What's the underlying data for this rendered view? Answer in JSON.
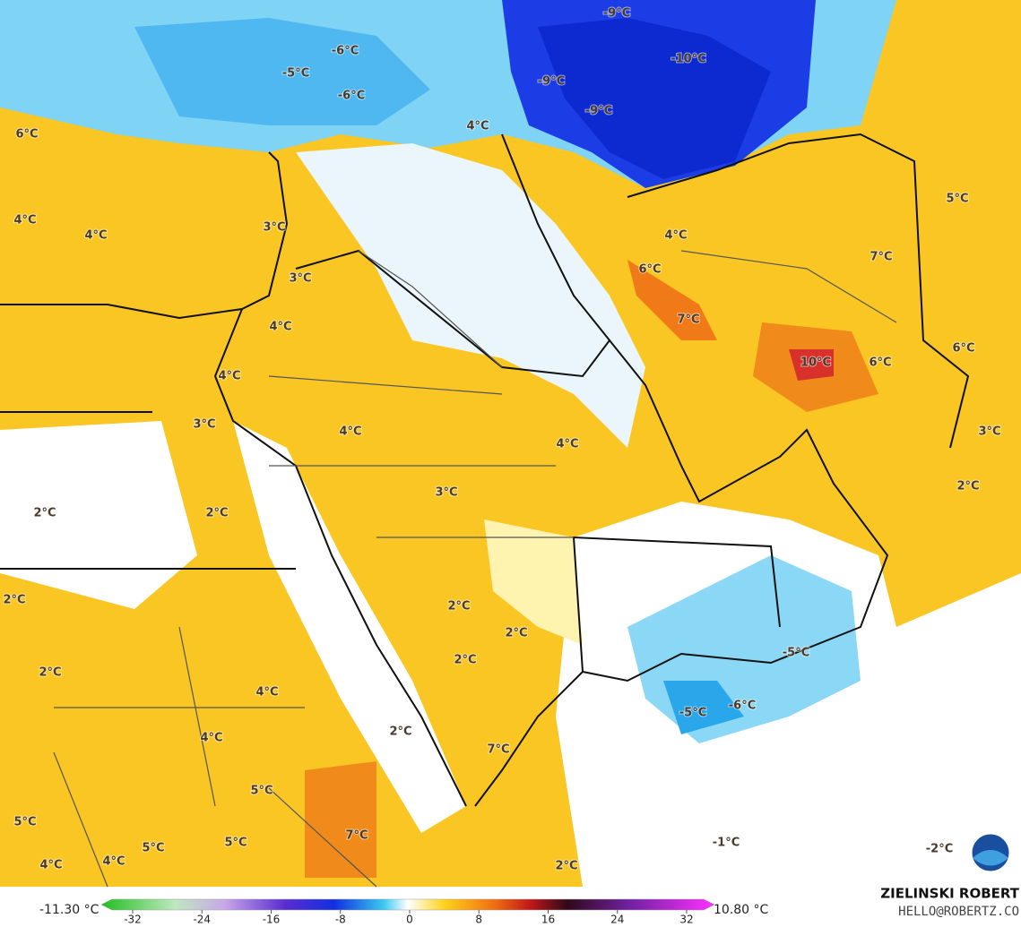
{
  "map_labels": [
    "-9°C",
    "-6°C",
    "-10°C",
    "-5°C",
    "-9°C",
    "-6°C",
    "-9°C",
    "4°C",
    "6°C",
    "4°C",
    "4°C",
    "3°C",
    "5°C",
    "4°C",
    "7°C",
    "6°C",
    "3°C",
    "4°C",
    "7°C",
    "6°C",
    "10°C",
    "6°C",
    "4°C",
    "3°C",
    "4°C",
    "4°C",
    "3°C",
    "3°C",
    "2°C",
    "2°C",
    "2°C",
    "2°C",
    "2°C",
    "2°C",
    "-5°C",
    "2°C",
    "2°C",
    "4°C",
    "-6°C",
    "-5°C",
    "4°C",
    "2°C",
    "7°C",
    "5°C",
    "5°C",
    "5°C",
    "5°C",
    "7°C",
    "-1°C",
    "4°C",
    "4°C",
    "2°C",
    "-2°C"
  ],
  "colorbar": {
    "min_label": "-11.30 °C",
    "max_label": "10.80 °C",
    "lim": [
      -32,
      32
    ],
    "ticks": [
      -32,
      -24,
      -16,
      -8,
      0,
      8,
      16,
      24,
      32
    ]
  },
  "credit": {
    "name": "ZIELINSKI ROBERT",
    "contact": "HELLO@ROBERTZ.CO"
  }
}
